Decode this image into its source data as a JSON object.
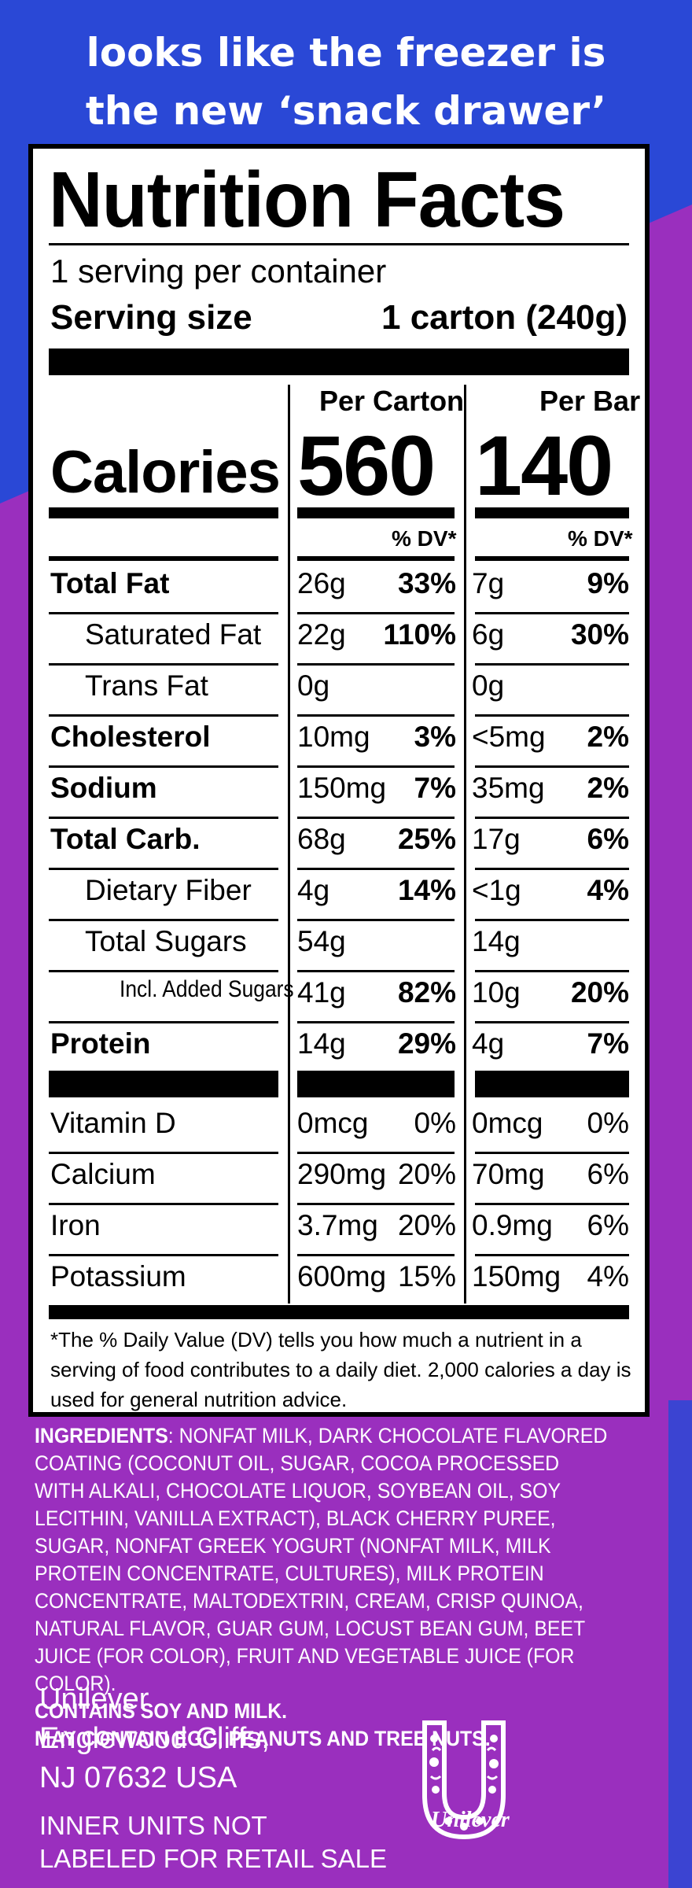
{
  "tagline": {
    "line1": "looks like the freezer is",
    "line2": "the new ‘snack drawer’"
  },
  "nutrition": {
    "title": "Nutrition Facts",
    "servings_per_container": "1 serving per container",
    "serving_size_label": "Serving size",
    "serving_size_value": "1 carton (240g)",
    "col1_head": "Per Carton",
    "col2_head": "Per Bar",
    "calories_label": "Calories",
    "calories_carton": "560",
    "calories_bar": "140",
    "dv_head": "% DV*",
    "rows": [
      {
        "label": "Total Fat",
        "c1": "26g",
        "p1": "33%",
        "c2": "7g",
        "p2": "9%"
      },
      {
        "label": "Saturated Fat",
        "c1": "22g",
        "p1": "110%",
        "c2": "6g",
        "p2": "30%"
      },
      {
        "label": "Trans Fat",
        "c1": "0g",
        "p1": "",
        "c2": "0g",
        "p2": ""
      },
      {
        "label": "Cholesterol",
        "c1": "10mg",
        "p1": "3%",
        "c2": "<5mg",
        "p2": "2%"
      },
      {
        "label": "Sodium",
        "c1": "150mg",
        "p1": "7%",
        "c2": "35mg",
        "p2": "2%"
      },
      {
        "label": "Total Carb.",
        "c1": "68g",
        "p1": "25%",
        "c2": "17g",
        "p2": "6%"
      },
      {
        "label": "Dietary Fiber",
        "c1": "4g",
        "p1": "14%",
        "c2": "<1g",
        "p2": "4%"
      },
      {
        "label": "Total Sugars",
        "c1": "54g",
        "p1": "",
        "c2": "14g",
        "p2": ""
      },
      {
        "label": "Incl. Added Sugars",
        "c1": "41g",
        "p1": "82%",
        "c2": "10g",
        "p2": "20%"
      },
      {
        "label": "Protein",
        "c1": "14g",
        "p1": "29%",
        "c2": "4g",
        "p2": "7%"
      }
    ],
    "vitamins": [
      {
        "label": "Vitamin D",
        "c1": "0mcg",
        "p1": "0%",
        "c2": "0mcg",
        "p2": "0%"
      },
      {
        "label": "Calcium",
        "c1": "290mg",
        "p1": "20%",
        "c2": "70mg",
        "p2": "6%"
      },
      {
        "label": "Iron",
        "c1": "3.7mg",
        "p1": "20%",
        "c2": "0.9mg",
        "p2": "6%"
      },
      {
        "label": "Potassium",
        "c1": "600mg",
        "p1": "15%",
        "c2": "150mg",
        "p2": "4%"
      }
    ],
    "footnote": "*The % Daily Value (DV) tells you how much a nutrient in a serving of food contributes to a daily diet. 2,000 calories a day is used for general nutrition advice."
  },
  "ingredients": {
    "label": "INGREDIENTS",
    "text": ": NONFAT MILK, DARK CHOCOLATE FLAVORED COATING (COCONUT OIL, SUGAR, COCOA PROCESSED WITH ALKALI, CHOCOLATE LIQUOR, SOYBEAN OIL, SOY LECITHIN, VANILLA EXTRACT), BLACK CHERRY PUREE, SUGAR, NONFAT GREEK YOGURT (NONFAT MILK, MILK PROTEIN CONCENTRATE, CULTURES), MILK PROTEIN CONCENTRATE, MALTODEXTRIN, CREAM, CRISP QUINOA, NATURAL FLAVOR, GUAR GUM, LOCUST BEAN GUM, BEET JUICE (FOR COLOR), FRUIT AND VEGETABLE JUICE (FOR COLOR).",
    "contains": "CONTAINS SOY AND MILK.",
    "may_contain": "MAY CONTAIN EGG, PEANUTS AND TREE NUTS."
  },
  "address": {
    "line1": "Unilever",
    "line2": "Englewood Cliffs,",
    "line3": "NJ 07632 USA"
  },
  "inner_units": {
    "line1": "INNER UNITS NOT",
    "line2": "LABELED FOR RETAIL SALE"
  },
  "logo": {
    "icon": "unilever-u-logo-icon",
    "text": "Unilever"
  },
  "colors": {
    "blue": "#2a48d6",
    "purple": "#9a2fbe",
    "white": "#ffffff",
    "black": "#000000"
  }
}
